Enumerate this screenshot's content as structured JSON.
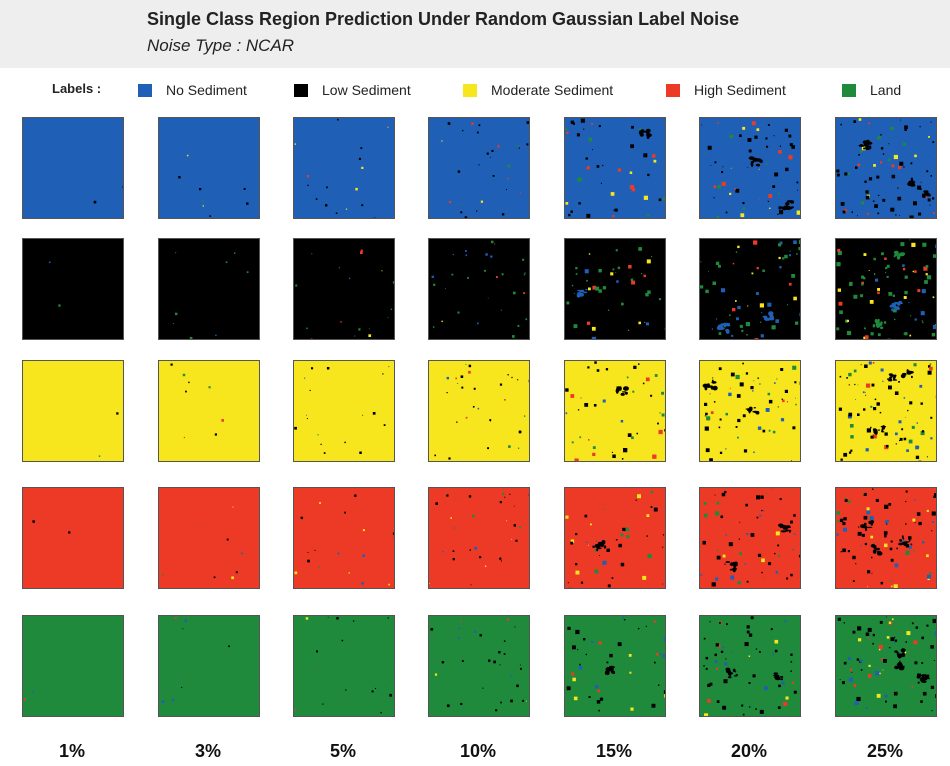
{
  "header": {
    "title": "Single Class Region Prediction Under Random Gaussian Label Noise",
    "subtitle": "Noise Type : NCAR"
  },
  "legend": {
    "label": "Labels :",
    "items": [
      {
        "name": "No Sediment",
        "color": "#1f5fb5"
      },
      {
        "name": "Low Sediment",
        "color": "#000000"
      },
      {
        "name": "Moderate Sediment",
        "color": "#f7e51e"
      },
      {
        "name": "High Sediment",
        "color": "#ec3a26"
      },
      {
        "name": "Land",
        "color": "#1f8a3c"
      }
    ]
  },
  "columns": [
    "1%",
    "3%",
    "5%",
    "10%",
    "15%",
    "20%",
    "25%"
  ],
  "rows": [
    "No Sediment",
    "Low Sediment",
    "Moderate Sediment",
    "High Sediment",
    "Land"
  ]
}
